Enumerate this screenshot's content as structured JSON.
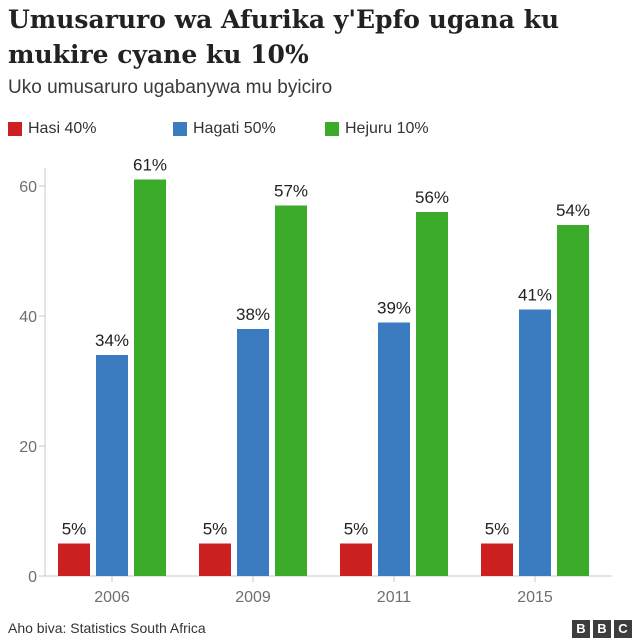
{
  "header": {
    "title": "Umusaruro wa Afurika y'Epfo ugana ku mukire cyane ku 10%",
    "subtitle": "Uko umusaruro ugabanywa mu byiciro"
  },
  "footer": {
    "source": "Aho biva: Statistics South Africa",
    "logo_letters": [
      "B",
      "B",
      "C"
    ]
  },
  "chart_data": {
    "type": "bar",
    "categories": [
      "2006",
      "2009",
      "2011",
      "2015"
    ],
    "series": [
      {
        "name": "Hasi 40%",
        "color": "#cc1f1f",
        "values": [
          5,
          5,
          5,
          5
        ],
        "labels": [
          "5%",
          "5%",
          "5%",
          "5%"
        ]
      },
      {
        "name": "Hagati 50%",
        "color": "#3b7bbf",
        "values": [
          34,
          38,
          39,
          41
        ],
        "labels": [
          "34%",
          "38%",
          "39%",
          "41%"
        ]
      },
      {
        "name": "Hejuru 10%",
        "color": "#3dab2a",
        "values": [
          61,
          57,
          56,
          54
        ],
        "labels": [
          "61%",
          "57%",
          "56%",
          "54%"
        ]
      }
    ],
    "ylim": [
      0,
      65
    ],
    "yticks": [
      0,
      20,
      40,
      60
    ],
    "grid": false,
    "legend_position": "top",
    "xlabel": "",
    "ylabel": ""
  }
}
